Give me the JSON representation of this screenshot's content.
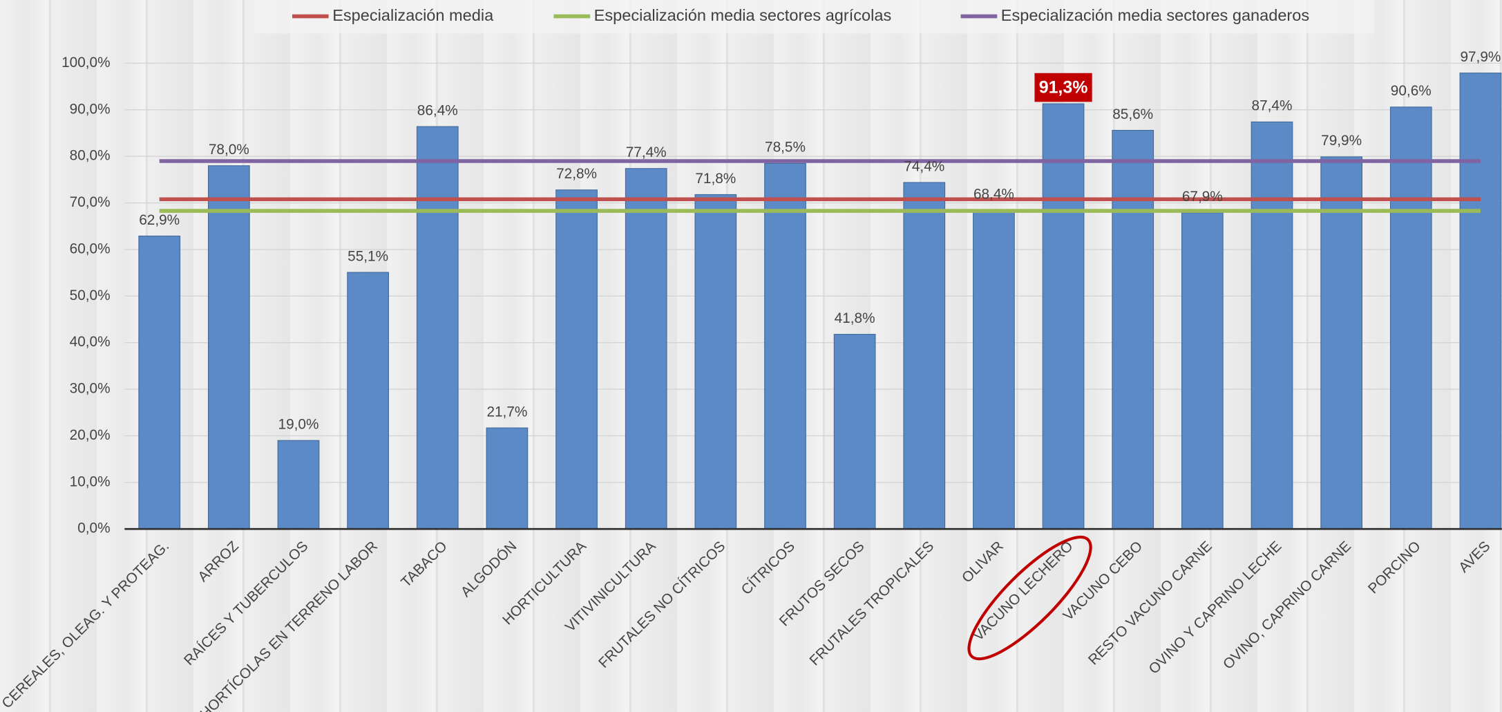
{
  "chart_data": {
    "type": "bar",
    "categories": [
      "CEREALES, OLEAG. Y PROTEAG.",
      "ARROZ",
      "RAÍCES Y TUBERCULOS",
      "HORTÍCOLAS EN TERRENO LABOR",
      "TABACO",
      "ALGODÓN",
      "HORTICULTURA",
      "VITIVINICULTURA",
      "FRUTALES NO CÍTRICOS",
      "CÍTRICOS",
      "FRUTOS SECOS",
      "FRUTALES TROPICALES",
      "OLIVAR",
      "VACUNO LECHERO",
      "VACUNO CEBO",
      "RESTO VACUNO CARNE",
      "OVINO Y CAPRINO LECHE",
      "OVINO, CAPRINO CARNE",
      "PORCINO",
      "AVES"
    ],
    "values": [
      62.9,
      78.0,
      19.0,
      55.1,
      86.4,
      21.7,
      72.8,
      77.4,
      71.8,
      78.5,
      41.8,
      74.4,
      68.4,
      91.3,
      85.6,
      67.9,
      87.4,
      79.9,
      90.6,
      97.9
    ],
    "value_labels": [
      "62,9%",
      "78,0%",
      "19,0%",
      "55,1%",
      "86,4%",
      "21,7%",
      "72,8%",
      "77,4%",
      "71,8%",
      "78,5%",
      "41,8%",
      "74,4%",
      "68,4%",
      "91,3%",
      "85,6%",
      "67,9%",
      "87,4%",
      "79,9%",
      "90,6%",
      "97,9%"
    ],
    "color": "#5b8ac6",
    "highlight": 13,
    "lines": [
      {
        "name": "Especialización media",
        "color": "#c0504d",
        "value": 70.8
      },
      {
        "name": "Especialización media sectores agrícolas",
        "color": "#9bbb59",
        "value": 68.3
      },
      {
        "name": "Especialización media sectores ganaderos",
        "color": "#8064a2",
        "value": 79.0
      }
    ],
    "ylim": [
      0,
      100
    ],
    "yticks": [
      {
        "value": 0,
        "label": "0,0%"
      },
      {
        "value": 10,
        "label": "10,0%"
      },
      {
        "value": 20,
        "label": "20,0%"
      },
      {
        "value": 30,
        "label": "30,0%"
      },
      {
        "value": 40,
        "label": "40,0%"
      },
      {
        "value": 50,
        "label": "50,0%"
      },
      {
        "value": 60,
        "label": "60,0%"
      },
      {
        "value": 70,
        "label": "70,0%"
      },
      {
        "value": 80,
        "label": "80,0%"
      },
      {
        "value": 90,
        "label": "90,0%"
      },
      {
        "value": 100,
        "label": "100,0%"
      }
    ],
    "grid": true
  }
}
